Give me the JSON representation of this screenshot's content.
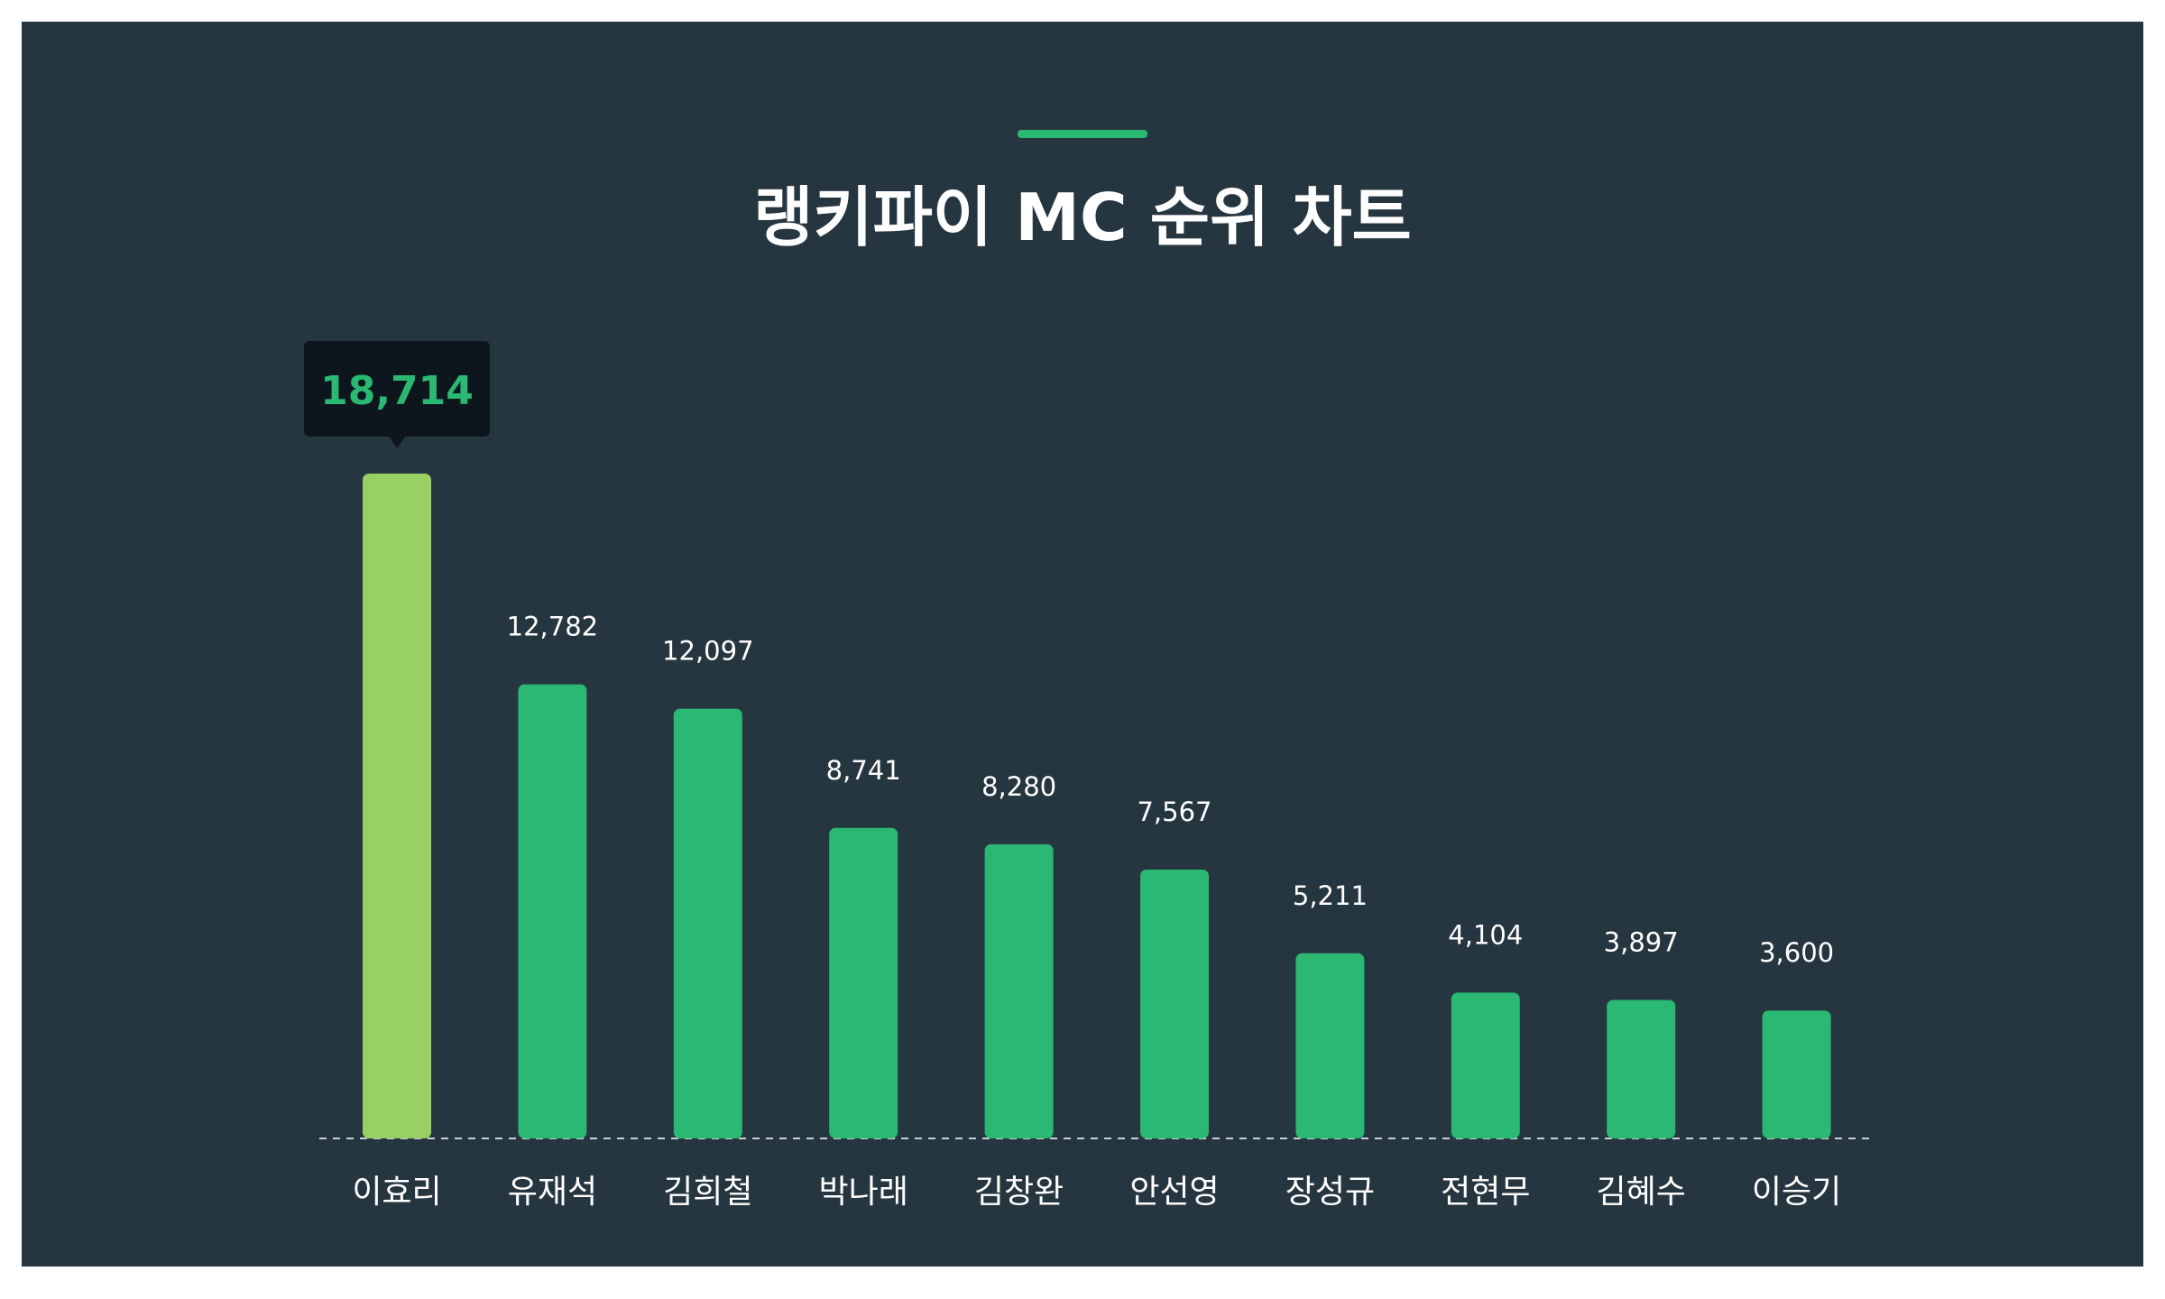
{
  "colors": {
    "background": "#263640",
    "bar": "#2ab873",
    "bar_highlight": "#98d063",
    "accent": "#2ab873",
    "tooltip_bg": "#0d161d",
    "tooltip_text": "#2ab873",
    "baseline": "#c8d0d6",
    "text": "#ffffff"
  },
  "chart_data": {
    "type": "bar",
    "title": "랭키파이 MC 순위 차트",
    "xlabel": "",
    "ylabel": "",
    "categories": [
      "이효리",
      "유재석",
      "김희철",
      "박나래",
      "김창완",
      "안선영",
      "장성규",
      "전현무",
      "김혜수",
      "이승기"
    ],
    "values": [
      18714,
      12782,
      12097,
      8741,
      8280,
      7567,
      5211,
      4104,
      3897,
      3600
    ],
    "value_labels": [
      "18,714",
      "12,782",
      "12,097",
      "8,741",
      "8,280",
      "7,567",
      "5,211",
      "4,104",
      "3,897",
      "3,600"
    ],
    "highlight_index": 0,
    "ylim": [
      0,
      18714
    ],
    "grid": false,
    "legend": "none"
  }
}
